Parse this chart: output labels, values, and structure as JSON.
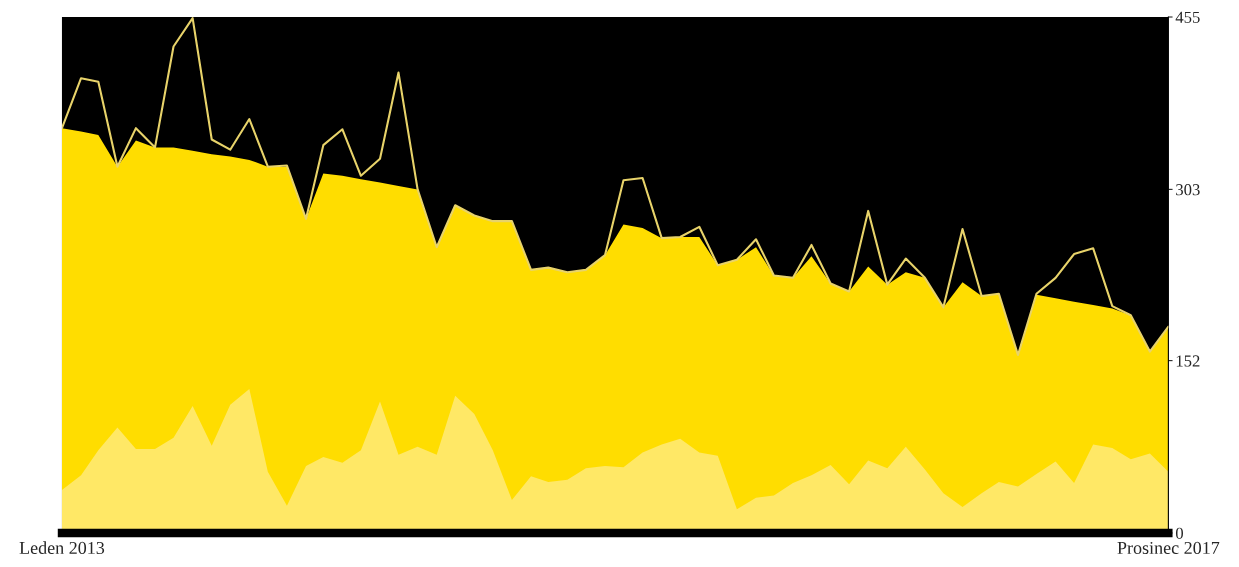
{
  "chart_data": {
    "type": "area",
    "x": [
      "2013-01",
      "2013-02",
      "2013-03",
      "2013-04",
      "2013-05",
      "2013-06",
      "2013-07",
      "2013-08",
      "2013-09",
      "2013-10",
      "2013-11",
      "2013-12",
      "2014-01",
      "2014-02",
      "2014-03",
      "2014-04",
      "2014-05",
      "2014-06",
      "2014-07",
      "2014-08",
      "2014-09",
      "2014-10",
      "2014-11",
      "2014-12",
      "2015-01",
      "2015-02",
      "2015-03",
      "2015-04",
      "2015-05",
      "2015-06",
      "2015-07",
      "2015-08",
      "2015-09",
      "2015-10",
      "2015-11",
      "2015-12",
      "2016-01",
      "2016-02",
      "2016-03",
      "2016-04",
      "2016-05",
      "2016-06",
      "2016-07",
      "2016-08",
      "2016-09",
      "2016-10",
      "2016-11",
      "2016-12",
      "2017-01",
      "2017-02",
      "2017-03",
      "2017-04",
      "2017-05",
      "2017-06",
      "2017-07",
      "2017-08",
      "2017-09",
      "2017-10",
      "2017-11",
      "2017-12"
    ],
    "xlim": [
      "2013-01",
      "2017-12"
    ],
    "xticks": [
      {
        "value": "2013-01",
        "label": "Leden 2013"
      },
      {
        "value": "2017-12",
        "label": "Prosinec 2017"
      }
    ],
    "series": [
      {
        "type": "area",
        "color": "#ffdd00",
        "values": [
          357,
          354,
          351,
          323,
          346,
          340,
          340,
          337,
          334,
          332,
          329,
          323,
          323,
          277,
          317,
          315,
          312,
          309,
          306,
          303,
          252,
          289,
          280,
          275,
          275,
          232,
          234,
          230,
          232,
          245,
          272,
          269,
          260,
          261,
          261,
          236,
          241,
          252,
          227,
          225,
          244,
          220,
          213,
          235,
          219,
          230,
          225,
          199,
          221,
          209,
          211,
          157,
          210,
          207,
          204,
          201,
          198,
          192,
          160,
          182
        ]
      },
      {
        "type": "area",
        "color": "#ffe866",
        "values": [
          38,
          51,
          73,
          93,
          74,
          74,
          84,
          112,
          77,
          113,
          127,
          54,
          24,
          59,
          67,
          62,
          73,
          116,
          69,
          76,
          69,
          121,
          105,
          73,
          29,
          50,
          45,
          47,
          57,
          59,
          58,
          71,
          78,
          83,
          71,
          68,
          21,
          31,
          33,
          44,
          51,
          60,
          43,
          64,
          57,
          76,
          56,
          35,
          23,
          35,
          45,
          41,
          52,
          63,
          44,
          78,
          75,
          65,
          70,
          54
        ]
      },
      {
        "type": "line",
        "color": "#e8d36a",
        "values": [
          357,
          401,
          398,
          323,
          357,
          340,
          429,
          454,
          347,
          338,
          365,
          323,
          324,
          277,
          342,
          356,
          315,
          330,
          406,
          303,
          252,
          289,
          280,
          275,
          275,
          232,
          234,
          230,
          232,
          245,
          311,
          313,
          260,
          261,
          270,
          236,
          241,
          259,
          227,
          225,
          254,
          220,
          213,
          284,
          219,
          242,
          225,
          199,
          268,
          209,
          211,
          157,
          211,
          225,
          246,
          251,
          200,
          192,
          160,
          182
        ]
      }
    ],
    "ylim": [
      0,
      455
    ],
    "yticks": [
      0,
      152,
      303,
      455
    ],
    "grid": false,
    "legend": false
  }
}
